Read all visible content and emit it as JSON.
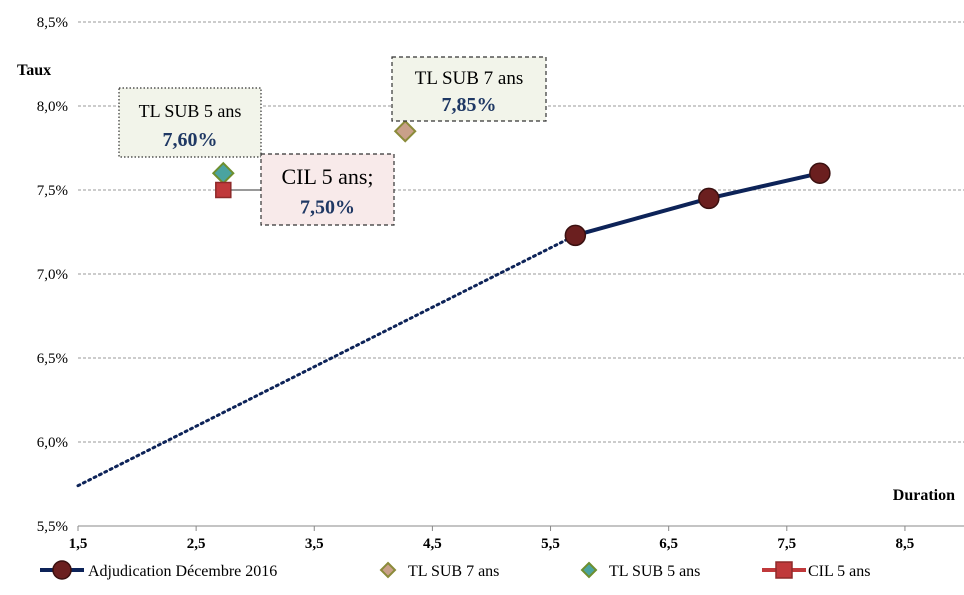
{
  "chart_data": {
    "type": "line",
    "xlabel": "Duration",
    "ylabel": "Taux",
    "xlim": [
      1.5,
      9.0
    ],
    "ylim": [
      5.5,
      8.5
    ],
    "xticks": [
      1.5,
      2.5,
      3.5,
      4.5,
      5.5,
      6.5,
      7.5,
      8.5
    ],
    "xtick_labels": [
      "1,5",
      "2,5",
      "3,5",
      "4,5",
      "5,5",
      "6,5",
      "7,5",
      "8,5"
    ],
    "yticks": [
      5.5,
      6.0,
      6.5,
      7.0,
      7.5,
      8.0,
      8.5
    ],
    "ytick_labels": [
      "5,5%",
      "6,0%",
      "6,5%",
      "7,0%",
      "7,5%",
      "8,0%",
      "8,5%"
    ],
    "grid": "horizontal dashed",
    "legend_position": "bottom",
    "series": [
      {
        "name": "Adjudication Décembre 2016",
        "kind": "line-marker",
        "color": "#0d2358",
        "marker_color": "#6b1f1f",
        "points": [
          [
            5.71,
            7.23
          ],
          [
            6.84,
            7.45
          ],
          [
            7.78,
            7.6
          ]
        ],
        "trend_points": [
          [
            1.5,
            5.74
          ],
          [
            5.71,
            7.23
          ]
        ]
      },
      {
        "name": "TL SUB 7 ans",
        "kind": "marker",
        "marker": "diamond",
        "color": "#c9a089",
        "edge_color": "#8b8b3a",
        "points": [
          [
            4.27,
            7.85
          ]
        ],
        "callout": {
          "name": "TL SUB 7 ans",
          "value": "7,85%"
        }
      },
      {
        "name": "TL SUB 5 ans",
        "kind": "marker",
        "marker": "diamond",
        "color": "#4aa3a0",
        "edge_color": "#6e8f2f",
        "points": [
          [
            2.73,
            7.6
          ]
        ],
        "callout": {
          "name": "TL SUB 5 ans",
          "value": "7,60%"
        }
      },
      {
        "name": "CIL 5 ans",
        "kind": "marker",
        "marker": "square",
        "color": "#c0393b",
        "edge_color": "#8e2a2a",
        "points": [
          [
            2.73,
            7.5
          ]
        ],
        "callout": {
          "name": "CIL 5 ans;",
          "value": "7,50%"
        }
      }
    ]
  }
}
